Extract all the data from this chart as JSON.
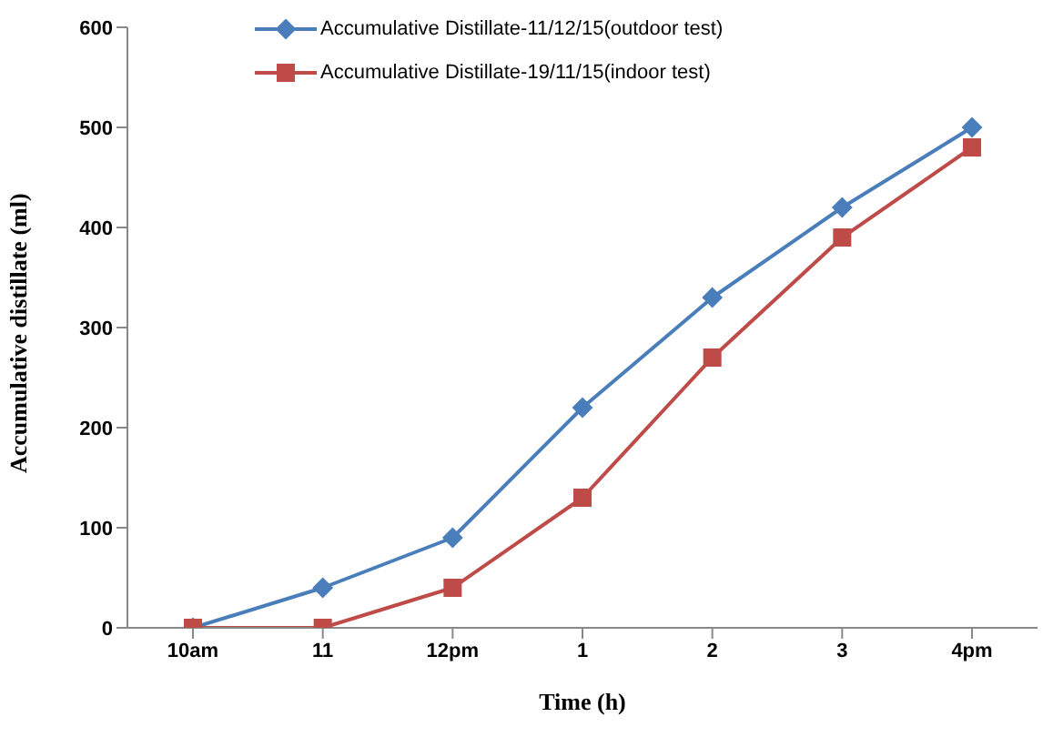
{
  "chart_data": {
    "type": "line",
    "xlabel": "Time (h)",
    "ylabel": "Accumulative distillate (ml)",
    "categories": [
      "10am",
      "11",
      "12pm",
      "1",
      "2",
      "3",
      "4pm"
    ],
    "series": [
      {
        "name": "Accumulative Distillate-11/12/15(outdoor test)",
        "color": "#4a7ebb",
        "marker": "diamond",
        "values": [
          0,
          40,
          90,
          220,
          330,
          420,
          500
        ]
      },
      {
        "name": "Accumulative Distillate-19/11/15(indoor test)",
        "color": "#be4b48",
        "marker": "square",
        "values": [
          0,
          0,
          40,
          130,
          270,
          390,
          480
        ]
      }
    ],
    "ylim": [
      0,
      600
    ],
    "yticks": [
      0,
      100,
      200,
      300,
      400,
      500,
      600
    ],
    "grid": false,
    "legend": "top",
    "line_style": "solid"
  }
}
